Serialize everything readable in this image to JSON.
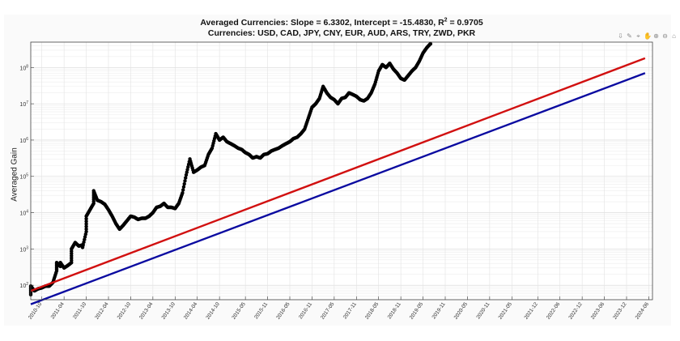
{
  "chart_data": {
    "type": "scatter",
    "title_line1_prefix": "Averaged Currencies: Slope = 6.3302, Intercept = -15.4830, R",
    "title_line1_sup": "2",
    "title_line1_suffix": " = 0.9705",
    "title_line2": "Currencies: USD, CAD, JPY, CNY, EUR, AUD, ARS, TRY, ZWD, PKR",
    "ylabel": "Averaged Gain",
    "xlabel": "",
    "yscale": "log",
    "ylim": [
      40,
      500000000
    ],
    "xlim": [
      "2010-07",
      "2024-07"
    ],
    "grid": true,
    "y_ticks": [
      {
        "value": 100,
        "exp": "2"
      },
      {
        "value": 1000,
        "exp": "3"
      },
      {
        "value": 10000,
        "exp": "4"
      },
      {
        "value": 100000,
        "exp": "5"
      },
      {
        "value": 1000000,
        "exp": "6"
      },
      {
        "value": 10000000,
        "exp": "7"
      },
      {
        "value": 100000000,
        "exp": "8"
      }
    ],
    "x_ticks": [
      "2010-10",
      "2011-04",
      "2011-10",
      "2012-04",
      "2012-10",
      "2013-04",
      "2013-10",
      "2014-04",
      "2014-10",
      "2015-05",
      "2015-11",
      "2016-05",
      "2016-11",
      "2017-05",
      "2017-11",
      "2018-05",
      "2018-11",
      "2019-05",
      "2019-11",
      "2020-05",
      "2020-11",
      "2021-05",
      "2021-12",
      "2022-06",
      "2022-12",
      "2023-06",
      "2023-12",
      "2024-06"
    ],
    "series": [
      {
        "kind": "markers",
        "color": "#000000",
        "points": [
          [
            "2010-07",
            55
          ],
          [
            "2010-07",
            95
          ],
          [
            "2010-08",
            70
          ],
          [
            "2010-09",
            80
          ],
          [
            "2010-10",
            85
          ],
          [
            "2010-11",
            95
          ],
          [
            "2010-12",
            95
          ],
          [
            "2011-01",
            120
          ],
          [
            "2011-02",
            250
          ],
          [
            "2011-02",
            420
          ],
          [
            "2011-03",
            330
          ],
          [
            "2011-03",
            420
          ],
          [
            "2011-04",
            300
          ],
          [
            "2011-05",
            350
          ],
          [
            "2011-06",
            420
          ],
          [
            "2011-06",
            1000
          ],
          [
            "2011-07",
            1500
          ],
          [
            "2011-08",
            1200
          ],
          [
            "2011-09",
            1300
          ],
          [
            "2011-09",
            1100
          ],
          [
            "2011-10",
            3000
          ],
          [
            "2011-10",
            8000
          ],
          [
            "2011-11",
            12000
          ],
          [
            "2011-12",
            18000
          ],
          [
            "2011-12",
            40000
          ],
          [
            "2012-01",
            22000
          ],
          [
            "2012-02",
            20000
          ],
          [
            "2012-03",
            17000
          ],
          [
            "2012-04",
            12000
          ],
          [
            "2012-05",
            8000
          ],
          [
            "2012-06",
            5000
          ],
          [
            "2012-07",
            3500
          ],
          [
            "2012-08",
            4500
          ],
          [
            "2012-09",
            6000
          ],
          [
            "2012-10",
            8000
          ],
          [
            "2012-11",
            7500
          ],
          [
            "2012-12",
            6500
          ],
          [
            "2013-01",
            7000
          ],
          [
            "2013-02",
            7000
          ],
          [
            "2013-03",
            8000
          ],
          [
            "2013-04",
            10000
          ],
          [
            "2013-05",
            14000
          ],
          [
            "2013-06",
            15000
          ],
          [
            "2013-07",
            18000
          ],
          [
            "2013-08",
            14000
          ],
          [
            "2013-09",
            14000
          ],
          [
            "2013-10",
            13000
          ],
          [
            "2013-11",
            18000
          ],
          [
            "2013-12",
            35000
          ],
          [
            "2014-01",
            110000
          ],
          [
            "2014-02",
            300000
          ],
          [
            "2014-03",
            130000
          ],
          [
            "2014-04",
            150000
          ],
          [
            "2014-05",
            180000
          ],
          [
            "2014-06",
            200000
          ],
          [
            "2014-07",
            400000
          ],
          [
            "2014-08",
            600000
          ],
          [
            "2014-09",
            1500000
          ],
          [
            "2014-10",
            1000000
          ],
          [
            "2014-11",
            1200000
          ],
          [
            "2014-12",
            900000
          ],
          [
            "2015-01",
            800000
          ],
          [
            "2015-02",
            700000
          ],
          [
            "2015-03",
            600000
          ],
          [
            "2015-04",
            550000
          ],
          [
            "2015-05",
            450000
          ],
          [
            "2015-06",
            400000
          ],
          [
            "2015-07",
            320000
          ],
          [
            "2015-08",
            350000
          ],
          [
            "2015-09",
            320000
          ],
          [
            "2015-10",
            400000
          ],
          [
            "2015-11",
            420000
          ],
          [
            "2015-12",
            500000
          ],
          [
            "2016-01",
            550000
          ],
          [
            "2016-02",
            600000
          ],
          [
            "2016-03",
            700000
          ],
          [
            "2016-04",
            800000
          ],
          [
            "2016-05",
            900000
          ],
          [
            "2016-06",
            1100000
          ],
          [
            "2016-07",
            1200000
          ],
          [
            "2016-08",
            1500000
          ],
          [
            "2016-09",
            2000000
          ],
          [
            "2016-10",
            4000000
          ],
          [
            "2016-11",
            8000000
          ],
          [
            "2016-12",
            10000000
          ],
          [
            "2017-01",
            14000000
          ],
          [
            "2017-02",
            30000000
          ],
          [
            "2017-03",
            20000000
          ],
          [
            "2017-04",
            15000000
          ],
          [
            "2017-05",
            13000000
          ],
          [
            "2017-06",
            10000000
          ],
          [
            "2017-07",
            14000000
          ],
          [
            "2017-08",
            15000000
          ],
          [
            "2017-09",
            20000000
          ],
          [
            "2017-10",
            18000000
          ],
          [
            "2017-11",
            16000000
          ],
          [
            "2017-12",
            13000000
          ],
          [
            "2018-01",
            12000000
          ],
          [
            "2018-02",
            14000000
          ],
          [
            "2018-03",
            20000000
          ],
          [
            "2018-04",
            35000000
          ],
          [
            "2018-05",
            80000000
          ],
          [
            "2018-06",
            120000000
          ],
          [
            "2018-07",
            100000000
          ],
          [
            "2018-08",
            130000000
          ],
          [
            "2018-09",
            90000000
          ],
          [
            "2018-10",
            70000000
          ],
          [
            "2018-11",
            50000000
          ],
          [
            "2018-12",
            45000000
          ],
          [
            "2019-01",
            60000000
          ],
          [
            "2019-02",
            80000000
          ],
          [
            "2019-03",
            100000000
          ],
          [
            "2019-04",
            150000000
          ],
          [
            "2019-05",
            250000000
          ],
          [
            "2019-06",
            350000000
          ],
          [
            "2019-07",
            450000000
          ]
        ]
      },
      {
        "kind": "line",
        "color": "#d11010",
        "points": [
          [
            "2010-07",
            70
          ],
          [
            "2024-05",
            180000000
          ]
        ]
      },
      {
        "kind": "line",
        "color": "#0a0aa0",
        "points": [
          [
            "2010-07",
            30
          ],
          [
            "2024-05",
            70000000
          ]
        ]
      }
    ]
  },
  "toolbar": {
    "icons": [
      "export-icon",
      "brush-icon",
      "datatip-icon",
      "pan-icon",
      "zoom-in-icon",
      "zoom-out-icon",
      "home-icon"
    ],
    "glyphs": [
      "⇩",
      "✎",
      "⌖",
      "✋",
      "⊕",
      "⊖",
      "⌂"
    ]
  }
}
